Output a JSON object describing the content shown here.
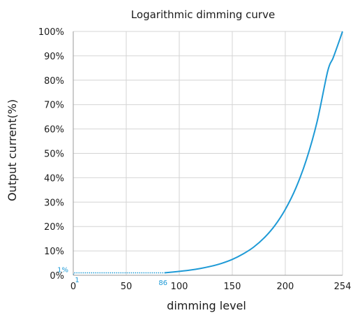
{
  "chart_data": {
    "type": "line",
    "title": "Logarithmic dimming curve",
    "xlabel": "dimming level",
    "ylabel": "Output current(%)",
    "xlim": [
      0,
      254
    ],
    "ylim": [
      0,
      100
    ],
    "x_ticks": [
      0,
      50,
      100,
      150,
      200,
      254
    ],
    "x_tick_labels": [
      "0",
      "50",
      "100",
      "150",
      "200",
      "254"
    ],
    "y_ticks": [
      0,
      10,
      20,
      30,
      40,
      50,
      60,
      70,
      80,
      90,
      100
    ],
    "y_tick_labels": [
      "0%",
      "10%",
      "20%",
      "30%",
      "40%",
      "50%",
      "60%",
      "70%",
      "80%",
      "90%",
      "100%"
    ],
    "grid": true,
    "line_color": "#1e9ad6",
    "series": [
      {
        "style": "solid",
        "x": [
          86,
          100,
          110,
          120,
          130,
          140,
          150,
          160,
          170,
          180,
          190,
          200,
          210,
          220,
          230,
          240,
          245,
          250,
          254
        ],
        "y": [
          1.0,
          1.6,
          2.1,
          2.8,
          3.7,
          4.9,
          6.5,
          8.7,
          11.5,
          15.3,
          20.3,
          27.0,
          35.8,
          47.5,
          63.0,
          83.7,
          89.0,
          95.0,
          100.0
        ]
      },
      {
        "style": "dotted",
        "x": [
          1,
          86
        ],
        "y": [
          1.0,
          1.0
        ]
      }
    ],
    "annotations": [
      {
        "text": "1%",
        "x": 0,
        "y": 1
      },
      {
        "text": "1",
        "x": 1,
        "y": 0
      },
      {
        "text": "86",
        "x": 86,
        "y": 0
      }
    ]
  }
}
